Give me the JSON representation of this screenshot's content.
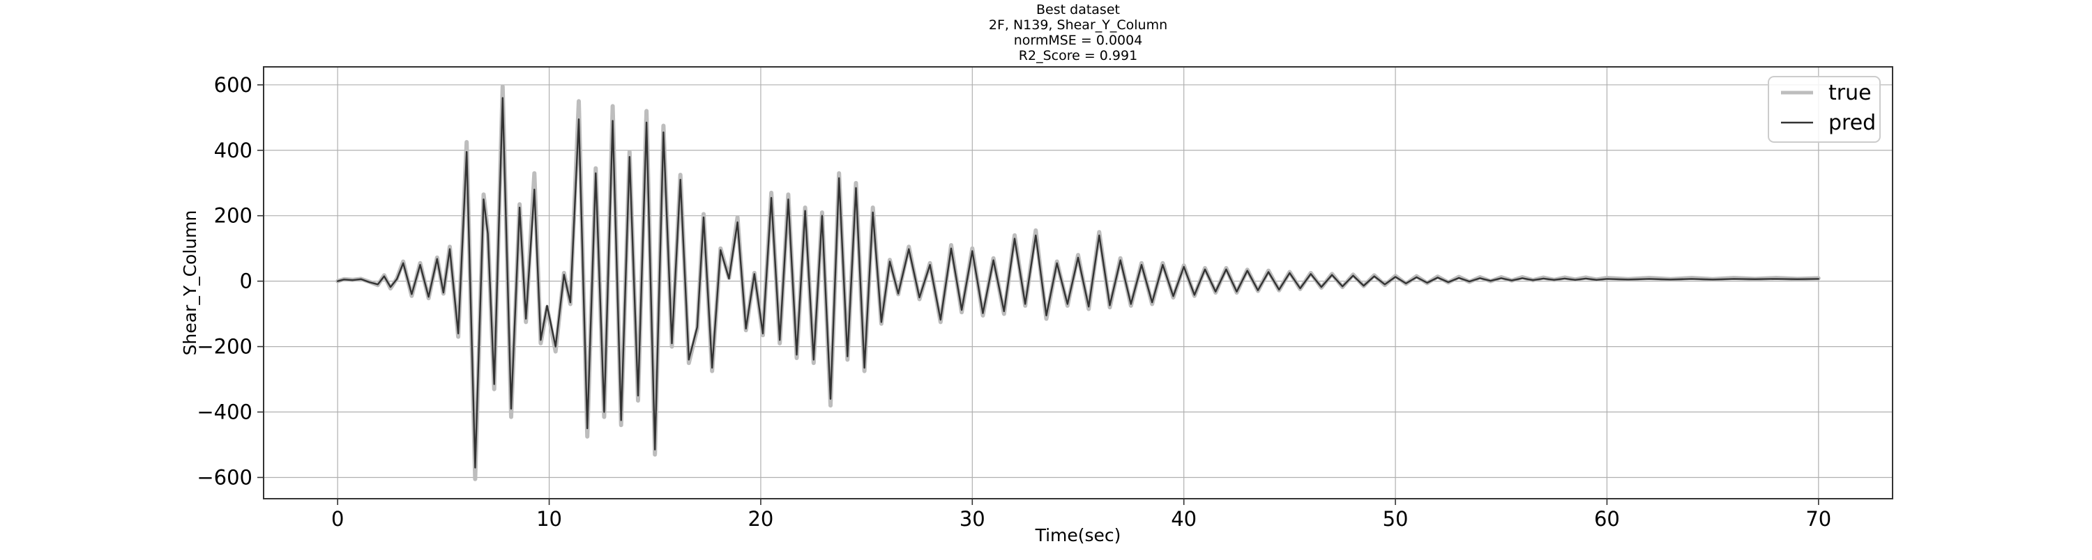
{
  "chart_data": {
    "type": "line",
    "title": [
      "Best dataset",
      "2F, N139, Shear_Y_Column",
      "normMSE = 0.0004",
      "R2_Score = 0.991"
    ],
    "xlabel": "Time(sec)",
    "ylabel": "Shear_Y_Column",
    "xlim": [
      -3.5,
      73.5
    ],
    "ylim": [
      -665,
      655
    ],
    "xticks": [
      0,
      10,
      20,
      30,
      40,
      50,
      60,
      70
    ],
    "yticks": [
      -600,
      -400,
      -200,
      0,
      200,
      400,
      600
    ],
    "ytick_labels": [
      "−600",
      "−400",
      "−200",
      "0",
      "200",
      "400",
      "600"
    ],
    "grid": true,
    "legend": {
      "position": "top-right",
      "entries": [
        "true",
        "pred"
      ]
    },
    "series": [
      {
        "name": "true",
        "color": "#bdbdbd",
        "points": [
          [
            0,
            0
          ],
          [
            0.3,
            6
          ],
          [
            0.7,
            4
          ],
          [
            1.1,
            7
          ],
          [
            1.5,
            -2
          ],
          [
            1.9,
            -12
          ],
          [
            2.2,
            18
          ],
          [
            2.5,
            -22
          ],
          [
            2.8,
            8
          ],
          [
            3.1,
            60
          ],
          [
            3.5,
            -45
          ],
          [
            3.9,
            55
          ],
          [
            4.3,
            -52
          ],
          [
            4.7,
            72
          ],
          [
            5.0,
            -38
          ],
          [
            5.3,
            105
          ],
          [
            5.7,
            -170
          ],
          [
            6.1,
            425
          ],
          [
            6.5,
            -605
          ],
          [
            6.9,
            265
          ],
          [
            7.1,
            150
          ],
          [
            7.4,
            -330
          ],
          [
            7.8,
            595
          ],
          [
            8.2,
            -415
          ],
          [
            8.6,
            235
          ],
          [
            8.9,
            -125
          ],
          [
            9.3,
            330
          ],
          [
            9.6,
            -190
          ],
          [
            9.9,
            -80
          ],
          [
            10.3,
            -215
          ],
          [
            10.7,
            25
          ],
          [
            11.0,
            -70
          ],
          [
            11.4,
            550
          ],
          [
            11.8,
            -475
          ],
          [
            12.2,
            345
          ],
          [
            12.6,
            -415
          ],
          [
            13.0,
            535
          ],
          [
            13.4,
            -440
          ],
          [
            13.8,
            395
          ],
          [
            14.2,
            -365
          ],
          [
            14.6,
            520
          ],
          [
            15.0,
            -530
          ],
          [
            15.4,
            475
          ],
          [
            15.8,
            -200
          ],
          [
            16.2,
            325
          ],
          [
            16.6,
            -250
          ],
          [
            17.0,
            -145
          ],
          [
            17.3,
            205
          ],
          [
            17.7,
            -275
          ],
          [
            18.1,
            100
          ],
          [
            18.5,
            10
          ],
          [
            18.9,
            195
          ],
          [
            19.3,
            -150
          ],
          [
            19.7,
            25
          ],
          [
            20.1,
            -165
          ],
          [
            20.5,
            270
          ],
          [
            20.9,
            -190
          ],
          [
            21.3,
            265
          ],
          [
            21.7,
            -235
          ],
          [
            22.1,
            225
          ],
          [
            22.5,
            -250
          ],
          [
            22.9,
            210
          ],
          [
            23.3,
            -380
          ],
          [
            23.7,
            330
          ],
          [
            24.1,
            -240
          ],
          [
            24.5,
            300
          ],
          [
            24.9,
            -275
          ],
          [
            25.3,
            225
          ],
          [
            25.7,
            -130
          ],
          [
            26.1,
            65
          ],
          [
            26.5,
            -40
          ],
          [
            27.0,
            105
          ],
          [
            27.5,
            -55
          ],
          [
            28.0,
            55
          ],
          [
            28.5,
            -125
          ],
          [
            29.0,
            110
          ],
          [
            29.5,
            -95
          ],
          [
            30.0,
            100
          ],
          [
            30.5,
            -105
          ],
          [
            31.0,
            70
          ],
          [
            31.5,
            -100
          ],
          [
            32.0,
            140
          ],
          [
            32.5,
            -75
          ],
          [
            33.0,
            155
          ],
          [
            33.5,
            -115
          ],
          [
            34.0,
            60
          ],
          [
            34.5,
            -75
          ],
          [
            35.0,
            80
          ],
          [
            35.5,
            -85
          ],
          [
            36.0,
            150
          ],
          [
            36.5,
            -80
          ],
          [
            37.0,
            70
          ],
          [
            37.5,
            -75
          ],
          [
            38.0,
            55
          ],
          [
            38.5,
            -70
          ],
          [
            39.0,
            55
          ],
          [
            39.5,
            -50
          ],
          [
            40.0,
            48
          ],
          [
            40.5,
            -45
          ],
          [
            41.0,
            40
          ],
          [
            41.5,
            -35
          ],
          [
            42.0,
            40
          ],
          [
            42.5,
            -35
          ],
          [
            43.0,
            35
          ],
          [
            43.5,
            -30
          ],
          [
            44.0,
            32
          ],
          [
            44.5,
            -28
          ],
          [
            45.0,
            28
          ],
          [
            45.5,
            -24
          ],
          [
            46.0,
            25
          ],
          [
            46.5,
            -20
          ],
          [
            47.0,
            22
          ],
          [
            47.5,
            -18
          ],
          [
            48.0,
            20
          ],
          [
            48.5,
            -15
          ],
          [
            49.0,
            18
          ],
          [
            49.5,
            -12
          ],
          [
            50.0,
            16
          ],
          [
            50.5,
            -8
          ],
          [
            51.0,
            15
          ],
          [
            51.5,
            -6
          ],
          [
            52.0,
            14
          ],
          [
            52.5,
            -4
          ],
          [
            53.0,
            13
          ],
          [
            53.5,
            -2
          ],
          [
            54.0,
            12
          ],
          [
            54.5,
            0
          ],
          [
            55.0,
            12
          ],
          [
            55.5,
            2
          ],
          [
            56.0,
            12
          ],
          [
            56.5,
            3
          ],
          [
            57.0,
            11
          ],
          [
            57.5,
            4
          ],
          [
            58.0,
            11
          ],
          [
            58.5,
            5
          ],
          [
            59.0,
            11
          ],
          [
            59.5,
            5
          ],
          [
            60.0,
            10
          ],
          [
            61.0,
            6
          ],
          [
            62.0,
            10
          ],
          [
            63.0,
            6
          ],
          [
            64.0,
            10
          ],
          [
            65.0,
            6
          ],
          [
            66.0,
            10
          ],
          [
            67.0,
            7
          ],
          [
            68.0,
            10
          ],
          [
            69.0,
            7
          ],
          [
            70.0,
            9
          ]
        ]
      },
      {
        "name": "pred",
        "color": "#333333",
        "points": [
          [
            0,
            0
          ],
          [
            0.3,
            5
          ],
          [
            0.7,
            3
          ],
          [
            1.1,
            6
          ],
          [
            1.5,
            -3
          ],
          [
            1.9,
            -10
          ],
          [
            2.2,
            15
          ],
          [
            2.5,
            -18
          ],
          [
            2.8,
            6
          ],
          [
            3.1,
            55
          ],
          [
            3.5,
            -40
          ],
          [
            3.9,
            50
          ],
          [
            4.3,
            -48
          ],
          [
            4.7,
            68
          ],
          [
            5.0,
            -35
          ],
          [
            5.3,
            98
          ],
          [
            5.7,
            -160
          ],
          [
            6.1,
            395
          ],
          [
            6.5,
            -570
          ],
          [
            6.9,
            250
          ],
          [
            7.1,
            145
          ],
          [
            7.4,
            -315
          ],
          [
            7.8,
            560
          ],
          [
            8.2,
            -390
          ],
          [
            8.6,
            225
          ],
          [
            8.9,
            -115
          ],
          [
            9.3,
            280
          ],
          [
            9.6,
            -180
          ],
          [
            9.9,
            -75
          ],
          [
            10.3,
            -200
          ],
          [
            10.7,
            20
          ],
          [
            11.0,
            -65
          ],
          [
            11.4,
            495
          ],
          [
            11.8,
            -450
          ],
          [
            12.2,
            330
          ],
          [
            12.6,
            -400
          ],
          [
            13.0,
            490
          ],
          [
            13.4,
            -425
          ],
          [
            13.8,
            380
          ],
          [
            14.2,
            -350
          ],
          [
            14.6,
            485
          ],
          [
            15.0,
            -515
          ],
          [
            15.4,
            455
          ],
          [
            15.8,
            -190
          ],
          [
            16.2,
            310
          ],
          [
            16.6,
            -240
          ],
          [
            17.0,
            -140
          ],
          [
            17.3,
            195
          ],
          [
            17.7,
            -265
          ],
          [
            18.1,
            95
          ],
          [
            18.5,
            8
          ],
          [
            18.9,
            180
          ],
          [
            19.3,
            -145
          ],
          [
            19.7,
            22
          ],
          [
            20.1,
            -160
          ],
          [
            20.5,
            255
          ],
          [
            20.9,
            -180
          ],
          [
            21.3,
            250
          ],
          [
            21.7,
            -225
          ],
          [
            22.1,
            215
          ],
          [
            22.5,
            -240
          ],
          [
            22.9,
            200
          ],
          [
            23.3,
            -360
          ],
          [
            23.7,
            315
          ],
          [
            24.1,
            -230
          ],
          [
            24.5,
            285
          ],
          [
            24.9,
            -265
          ],
          [
            25.3,
            210
          ],
          [
            25.7,
            -125
          ],
          [
            26.1,
            60
          ],
          [
            26.5,
            -38
          ],
          [
            27.0,
            98
          ],
          [
            27.5,
            -50
          ],
          [
            28.0,
            50
          ],
          [
            28.5,
            -118
          ],
          [
            29.0,
            100
          ],
          [
            29.5,
            -88
          ],
          [
            30.0,
            92
          ],
          [
            30.5,
            -98
          ],
          [
            31.0,
            64
          ],
          [
            31.5,
            -92
          ],
          [
            32.0,
            130
          ],
          [
            32.5,
            -70
          ],
          [
            33.0,
            140
          ],
          [
            33.5,
            -105
          ],
          [
            34.0,
            55
          ],
          [
            34.5,
            -70
          ],
          [
            35.0,
            72
          ],
          [
            35.5,
            -78
          ],
          [
            36.0,
            140
          ],
          [
            36.5,
            -74
          ],
          [
            37.0,
            64
          ],
          [
            37.5,
            -70
          ],
          [
            38.0,
            50
          ],
          [
            38.5,
            -65
          ],
          [
            39.0,
            50
          ],
          [
            39.5,
            -46
          ],
          [
            40.0,
            44
          ],
          [
            40.5,
            -42
          ],
          [
            41.0,
            36
          ],
          [
            41.5,
            -32
          ],
          [
            42.0,
            36
          ],
          [
            42.5,
            -32
          ],
          [
            43.0,
            32
          ],
          [
            43.5,
            -28
          ],
          [
            44.0,
            28
          ],
          [
            44.5,
            -26
          ],
          [
            45.0,
            25
          ],
          [
            45.5,
            -22
          ],
          [
            46.0,
            22
          ],
          [
            46.5,
            -18
          ],
          [
            47.0,
            19
          ],
          [
            47.5,
            -16
          ],
          [
            48.0,
            17
          ],
          [
            48.5,
            -14
          ],
          [
            49.0,
            15
          ],
          [
            49.5,
            -10
          ],
          [
            50.0,
            13
          ],
          [
            50.5,
            -7
          ],
          [
            51.0,
            12
          ],
          [
            51.5,
            -5
          ],
          [
            52.0,
            11
          ],
          [
            52.5,
            -3
          ],
          [
            53.0,
            10
          ],
          [
            53.5,
            -1
          ],
          [
            54.0,
            9
          ],
          [
            54.5,
            1
          ],
          [
            55.0,
            9
          ],
          [
            55.5,
            2
          ],
          [
            56.0,
            9
          ],
          [
            56.5,
            3
          ],
          [
            57.0,
            8
          ],
          [
            57.5,
            4
          ],
          [
            58.0,
            8
          ],
          [
            58.5,
            4
          ],
          [
            59.0,
            8
          ],
          [
            59.5,
            4
          ],
          [
            60.0,
            7
          ],
          [
            61.0,
            5
          ],
          [
            62.0,
            7
          ],
          [
            63.0,
            5
          ],
          [
            64.0,
            7
          ],
          [
            65.0,
            5
          ],
          [
            66.0,
            7
          ],
          [
            67.0,
            6
          ],
          [
            68.0,
            7
          ],
          [
            69.0,
            6
          ],
          [
            70.0,
            7
          ]
        ]
      }
    ]
  }
}
